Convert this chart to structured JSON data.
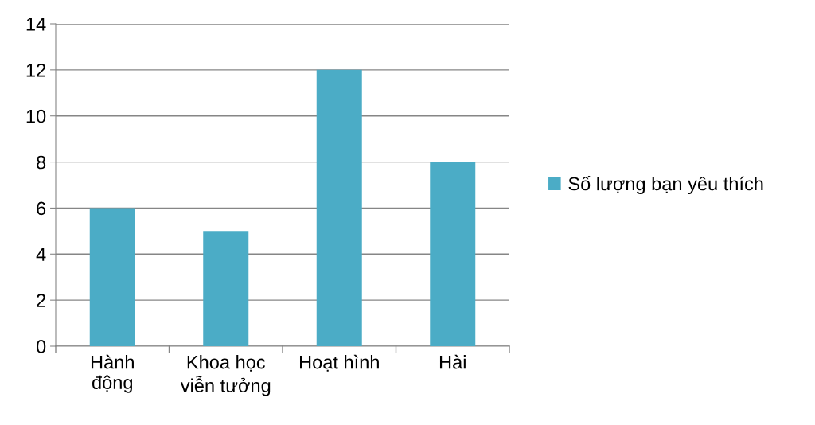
{
  "chart_data": {
    "type": "bar",
    "categories": [
      "Hành\nđộng",
      "Khoa học\nviễn tưởng",
      "Hoạt hình",
      "Hài"
    ],
    "series": [
      {
        "name": "Số lượng bạn yêu thích",
        "color": "#4bacc6",
        "values": [
          6,
          5,
          12,
          8
        ]
      }
    ],
    "ylim": [
      0,
      14
    ],
    "yticks": [
      0,
      2,
      4,
      6,
      8,
      10,
      12,
      14
    ],
    "grid": "y",
    "legend": "right"
  }
}
